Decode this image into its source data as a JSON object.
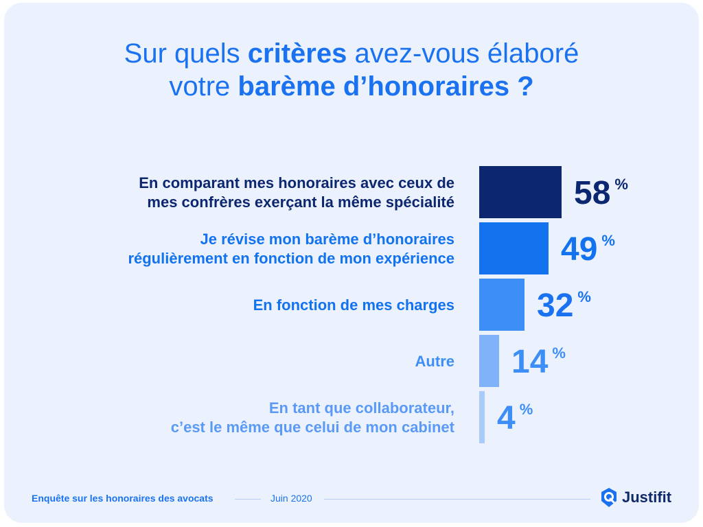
{
  "title": {
    "line1": {
      "pre": "Sur quels ",
      "bold": "critères",
      "post": " avez-vous élaboré"
    },
    "line2": {
      "pre": "votre ",
      "bold": "barème d’honoraires ?"
    }
  },
  "chart_data": {
    "type": "bar",
    "orientation": "horizontal",
    "unit": "%",
    "categories": [
      [
        "En comparant mes honoraires avec ceux de",
        "mes confrères exerçant la même spécialité"
      ],
      [
        "Je révise mon barème d’honoraires",
        "régulièrement en fonction de mon expérience"
      ],
      [
        "En fonction de mes charges"
      ],
      [
        "Autre"
      ],
      [
        "En tant que collaborateur,",
        "c’est le même que celui de mon cabinet"
      ]
    ],
    "values": [
      58,
      49,
      32,
      14,
      4
    ],
    "colors": [
      "#0c2670",
      "#1372ee",
      "#3d8ef6",
      "#7fb2f8",
      "#a9cbfa"
    ],
    "label_colors": [
      "#0c2670",
      "#1372ee",
      "#1372ee",
      "#3d8ef6",
      "#5a9af6"
    ],
    "value_colors": [
      "#0c2670",
      "#1372ee",
      "#1a72f0",
      "#3d8ef6",
      "#3d8ef6"
    ]
  },
  "footer": {
    "survey": "Enquête sur les honoraires des avocats",
    "date": "Juin 2020",
    "brand": "Justifit"
  }
}
